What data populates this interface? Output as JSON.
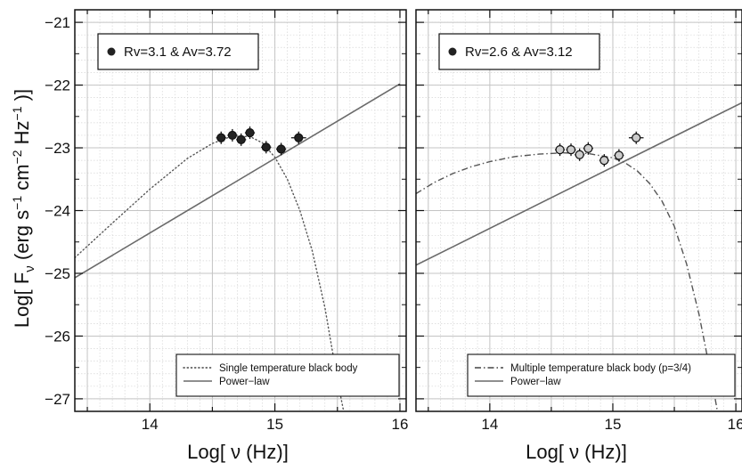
{
  "chart_data": [
    {
      "type": "scatter",
      "panel": "left",
      "xlabel": "Log[ ν (Hz)]",
      "ylabel": "Log[ F_ν (erg s⁻¹ cm⁻² Hz⁻¹ )]",
      "xlim": [
        13.4,
        16.05
      ],
      "ylim": [
        -27.2,
        -20.8
      ],
      "x_ticks": [
        14,
        15,
        16
      ],
      "y_ticks": [
        -27,
        -26,
        -25,
        -24,
        -23,
        -22,
        -21
      ],
      "grid": true,
      "inset_label": "Rv=3.1 & Av=3.72",
      "legend_position": "bottom-right",
      "legend_entries": [
        {
          "label": "Single temperature black body",
          "style": "dotted"
        },
        {
          "label": "Power−law",
          "style": "solid"
        }
      ],
      "points": {
        "marker_color": "#222222",
        "x": [
          14.57,
          14.66,
          14.73,
          14.8,
          14.93,
          15.05,
          15.19
        ],
        "y": [
          -22.84,
          -22.8,
          -22.87,
          -22.76,
          -22.99,
          -23.02,
          -22.84
        ],
        "xerr": [
          0.04,
          0.04,
          0.04,
          0.04,
          0.04,
          0.04,
          0.06
        ]
      },
      "lines": [
        {
          "label": "Power−law",
          "style": "solid",
          "x": [
            13.4,
            16.0
          ],
          "y": [
            -25.07,
            -21.98
          ]
        },
        {
          "label": "Single temperature black body",
          "style": "dotted",
          "x": [
            13.4,
            13.7,
            14.0,
            14.3,
            14.5,
            14.65,
            14.8,
            14.9,
            15.0,
            15.1,
            15.2,
            15.3,
            15.4,
            15.5,
            15.55
          ],
          "y": [
            -24.75,
            -24.2,
            -23.66,
            -23.17,
            -22.93,
            -22.82,
            -22.82,
            -22.92,
            -23.15,
            -23.5,
            -24.0,
            -24.65,
            -25.55,
            -26.7,
            -27.2
          ]
        }
      ]
    },
    {
      "type": "scatter",
      "panel": "right",
      "xlabel": "Log[ ν (Hz)]",
      "xlim": [
        13.4,
        16.05
      ],
      "ylim": [
        -27.2,
        -20.8
      ],
      "x_ticks": [
        14,
        15,
        16
      ],
      "grid": true,
      "inset_label": "Rv=2.6 & Av=3.12",
      "legend_position": "bottom-right",
      "legend_entries": [
        {
          "label": "Multiple temperature black body (p=3/4)",
          "style": "dash-dot"
        },
        {
          "label": "Power−law",
          "style": "solid"
        }
      ],
      "points": {
        "marker_color": "#cccccc",
        "x": [
          14.57,
          14.66,
          14.73,
          14.8,
          14.93,
          15.05,
          15.19
        ],
        "y": [
          -23.03,
          -23.03,
          -23.11,
          -23.01,
          -23.2,
          -23.12,
          -22.84
        ],
        "xerr": [
          0.04,
          0.04,
          0.04,
          0.04,
          0.04,
          0.04,
          0.06
        ]
      },
      "lines": [
        {
          "label": "Power−law",
          "style": "solid",
          "x": [
            13.4,
            16.05
          ],
          "y": [
            -24.87,
            -22.28
          ]
        },
        {
          "label": "Multiple temperature black body (p=3/4)",
          "style": "dash-dot",
          "x": [
            13.4,
            13.55,
            13.7,
            13.85,
            14.0,
            14.2,
            14.4,
            14.6,
            14.8,
            15.0,
            15.1,
            15.2,
            15.3,
            15.4,
            15.5,
            15.6,
            15.7,
            15.8,
            15.85
          ],
          "y": [
            -23.73,
            -23.55,
            -23.41,
            -23.3,
            -23.22,
            -23.14,
            -23.1,
            -23.08,
            -23.09,
            -23.16,
            -23.24,
            -23.37,
            -23.57,
            -23.85,
            -24.25,
            -24.85,
            -25.65,
            -26.65,
            -27.2
          ]
        }
      ]
    }
  ]
}
